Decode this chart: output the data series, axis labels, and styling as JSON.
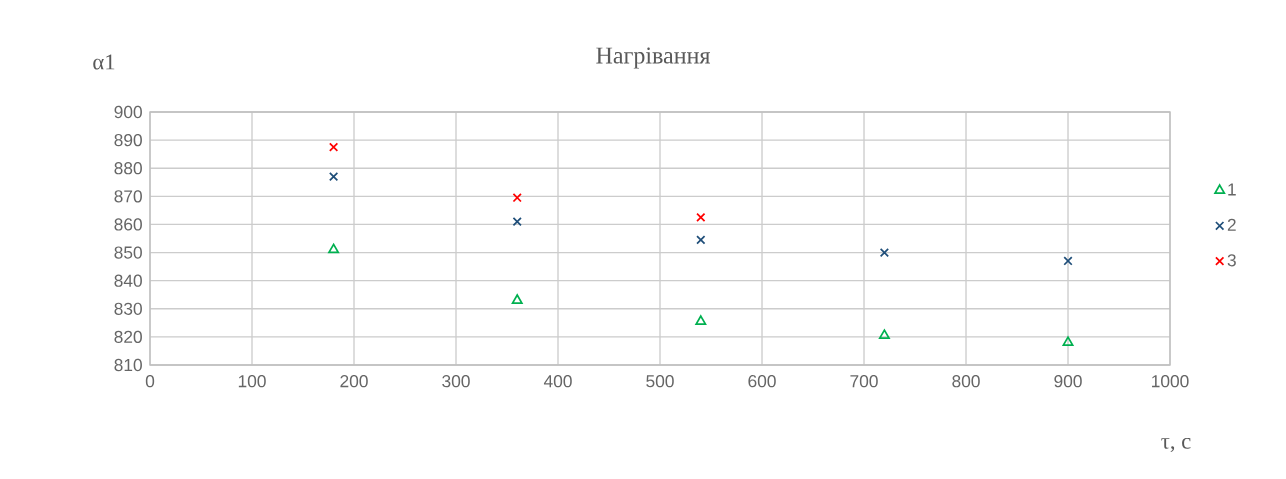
{
  "chart_data": {
    "type": "scatter",
    "title": "Нагрівання",
    "xlabel": "τ, с",
    "ylabel": "α1",
    "x": [
      180,
      360,
      540,
      720,
      900
    ],
    "series": [
      {
        "name": "1",
        "color": "#00b050",
        "marker": "triangle",
        "values": [
          851,
          833,
          825.5,
          820.5,
          818
        ]
      },
      {
        "name": "2",
        "color": "#1f4e79",
        "marker": "cross",
        "values": [
          877,
          861,
          854.5,
          850,
          847
        ]
      },
      {
        "name": "3",
        "color": "#ff0000",
        "marker": "cross",
        "x": [
          180,
          360,
          540
        ],
        "values": [
          887.5,
          869.5,
          862.5
        ]
      }
    ],
    "xlim": [
      0,
      1000
    ],
    "xticks": [
      0,
      100,
      200,
      300,
      400,
      500,
      600,
      700,
      800,
      900,
      1000
    ],
    "ylim": [
      810,
      900
    ],
    "yticks": [
      810,
      820,
      830,
      840,
      850,
      860,
      870,
      880,
      890,
      900
    ],
    "grid": true,
    "legend": "right"
  }
}
